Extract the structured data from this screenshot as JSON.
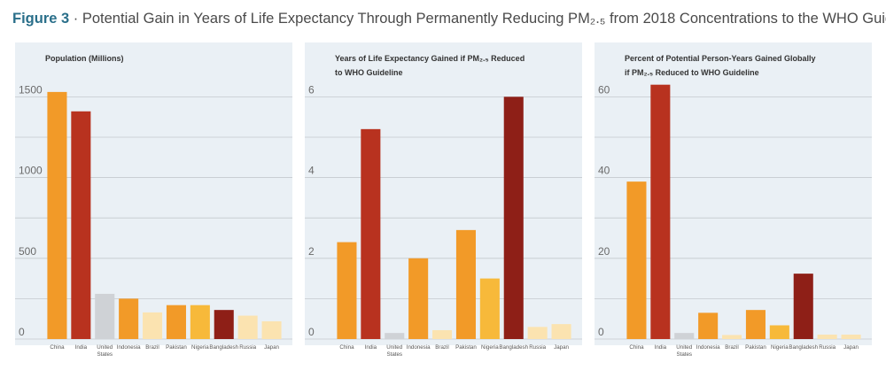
{
  "figure": {
    "label": "Figure 3",
    "separator": " · ",
    "title": "Potential Gain in Years of Life Expectancy Through Permanently Reducing PM₂.₅ from 2018 Concentrations to the WHO Guideline"
  },
  "colors": {
    "China": "#f29a28",
    "India": "#b8321f",
    "United States": "#cfd2d6",
    "Indonesia": "#f29a28",
    "Brazil": "#fbe3b0",
    "Pakistan": "#f29a28",
    "Nigeria": "#f7b93a",
    "Bangladesh": "#8e1f17",
    "Russia": "#fbe3b0",
    "Japan": "#fbe3b0",
    "panel_bg": "#eaf0f5",
    "gridline": "#c4c9ce"
  },
  "chart_data": [
    {
      "type": "bar",
      "title_lines": [
        "Population (Millions)"
      ],
      "categories": [
        "China",
        "India",
        "United States",
        "Indonesia",
        "Brazil",
        "Pakistan",
        "Nigeria",
        "Bangladesh",
        "Russia",
        "Japan"
      ],
      "values": [
        1530,
        1410,
        280,
        250,
        165,
        210,
        210,
        180,
        145,
        110
      ],
      "ylim": [
        0,
        1650
      ],
      "yticks": [
        0,
        500,
        1000,
        1500
      ],
      "gridlines": [
        0,
        250,
        500,
        750,
        1000,
        1250,
        1500
      ],
      "grid": true,
      "legend": "none"
    },
    {
      "type": "bar",
      "title_lines": [
        "Years of Life Expectancy Gained if PM₂.₅ Reduced",
        "to WHO Guideline"
      ],
      "categories": [
        "China",
        "India",
        "United States",
        "Indonesia",
        "Brazil",
        "Pakistan",
        "Nigeria",
        "Bangladesh",
        "Russia",
        "Japan"
      ],
      "values": [
        2.4,
        5.2,
        0.15,
        2.0,
        0.22,
        2.7,
        1.5,
        6.0,
        0.3,
        0.37
      ],
      "ylim": [
        0,
        6.6
      ],
      "yticks": [
        0,
        2,
        4,
        6
      ],
      "gridlines": [
        0,
        1,
        2,
        3,
        4,
        5,
        6
      ],
      "grid": true,
      "legend": "none"
    },
    {
      "type": "bar",
      "title_lines": [
        "Percent of Potential Person-Years Gained Globally",
        "if PM₂.₅ Reduced  to WHO Guideline"
      ],
      "categories": [
        "China",
        "India",
        "United States",
        "Indonesia",
        "Brazil",
        "Pakistan",
        "Nigeria",
        "Bangladesh",
        "Russia",
        "Japan"
      ],
      "values": [
        39,
        63,
        1.5,
        6.5,
        1.0,
        7.2,
        3.4,
        16.2,
        1.1,
        1.1
      ],
      "ylim": [
        0,
        66
      ],
      "yticks": [
        0,
        20,
        40,
        60
      ],
      "gridlines": [
        0,
        10,
        20,
        30,
        40,
        50,
        60
      ],
      "grid": true,
      "legend": "none"
    }
  ]
}
